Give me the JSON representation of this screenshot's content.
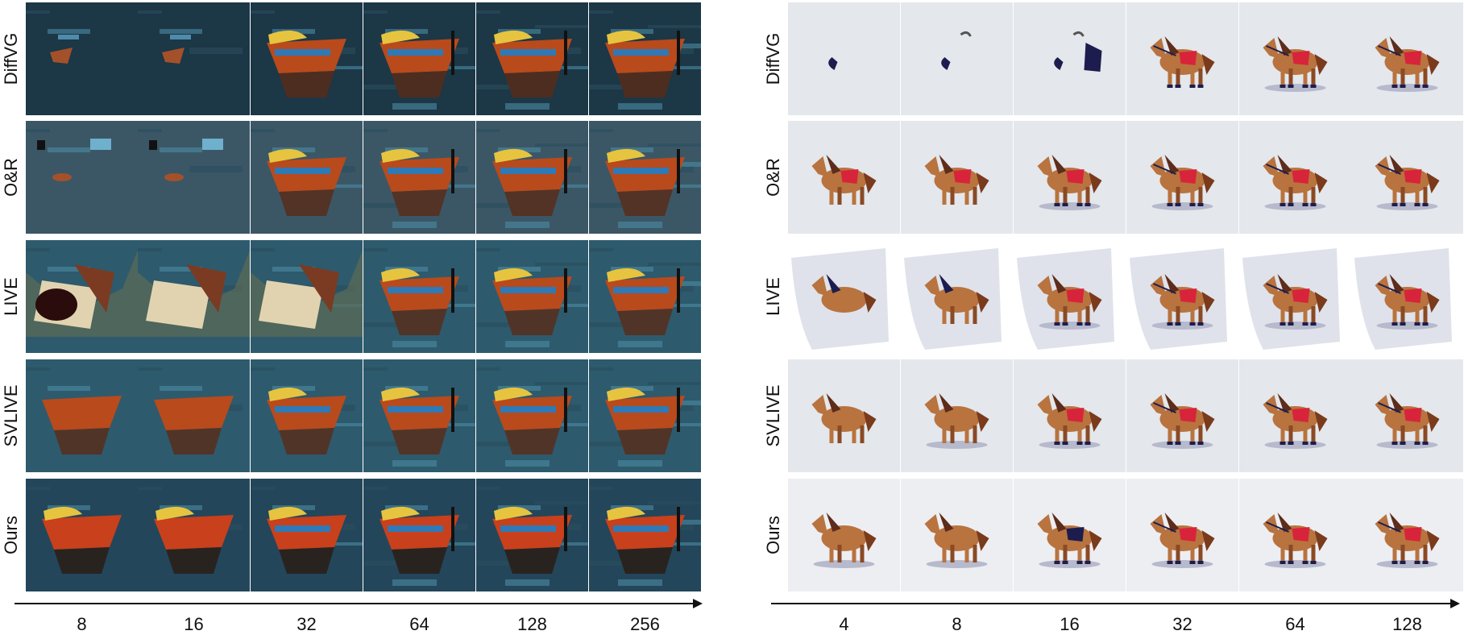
{
  "left_panel": {
    "rows": [
      "DiffVG",
      "O&R",
      "LIVE",
      "SVLIVE",
      "Ours"
    ],
    "ticks": [
      "8",
      "16",
      "32",
      "64",
      "128",
      "256"
    ]
  },
  "right_panel": {
    "rows": [
      "DiffVG",
      "O&R",
      "LIVE",
      "SVLIVE",
      "Ours"
    ],
    "ticks": [
      "4",
      "8",
      "16",
      "32",
      "64",
      "128"
    ]
  },
  "colors": {
    "water_dark": "#1d3a4a",
    "water_mid": "#3e6c82",
    "boat_red": "#c8401c",
    "boat_yellow": "#e6c440",
    "boat_blue": "#2f79b6",
    "horse_brown": "#b8733f",
    "horse_navy": "#1c1d4e",
    "saddle_red": "#d8243a",
    "bg_light": "#e4e7eb"
  }
}
